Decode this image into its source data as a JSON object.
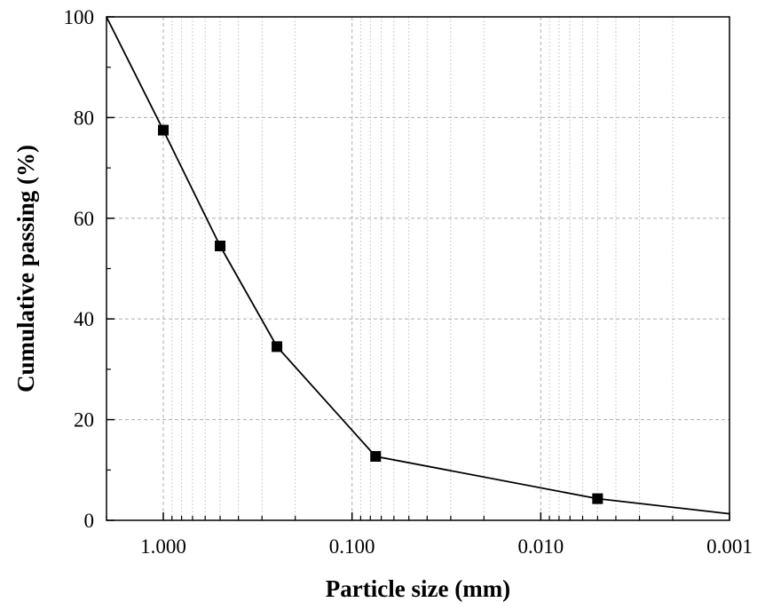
{
  "chart_data": {
    "type": "line",
    "title": "",
    "xlabel": "Particle size (mm)",
    "ylabel": "Cumulative passing (%)",
    "x_scale": "log",
    "x_reversed": true,
    "xlim": [
      2.0,
      0.001
    ],
    "ylim": [
      0,
      100
    ],
    "x_ticks": [
      1.0,
      0.1,
      0.01,
      0.001
    ],
    "x_tick_labels": [
      "1.000",
      "0.100",
      "0.010",
      "0.001"
    ],
    "y_ticks": [
      0,
      20,
      40,
      60,
      80,
      100
    ],
    "y_tick_labels": [
      "0",
      "20",
      "40",
      "60",
      "80",
      "100"
    ],
    "grid": true,
    "series": [
      {
        "x": [
          2.0,
          1.0,
          0.5,
          0.25,
          0.075,
          0.005,
          0.001
        ],
        "y": [
          100,
          77.5,
          54.5,
          34.5,
          12.7,
          4.3,
          1.3
        ],
        "markers": [
          false,
          true,
          true,
          true,
          true,
          true,
          false
        ],
        "color": "#000000",
        "marker": "square"
      }
    ]
  }
}
